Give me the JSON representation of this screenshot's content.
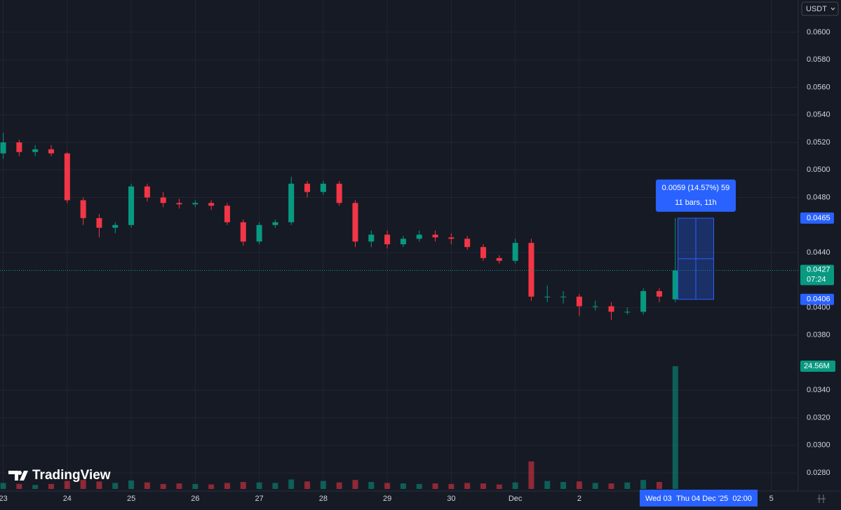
{
  "chart_data": {
    "type": "candlestick",
    "currency": "USDT",
    "x": [
      0,
      0.25,
      0.5,
      0.75,
      1,
      1.25,
      1.5,
      1.75,
      2,
      2.25,
      2.5,
      2.75,
      3,
      3.25,
      3.5,
      3.75,
      4,
      4.25,
      4.5,
      4.75,
      5,
      5.25,
      5.5,
      5.75,
      6,
      6.25,
      6.5,
      6.75,
      7,
      7.25,
      7.5,
      7.75,
      8,
      8.25,
      8.5,
      8.75,
      9,
      9.25,
      9.5,
      9.75,
      10,
      10.25,
      10.5
    ],
    "open": [
      0.0512,
      0.052,
      0.0513,
      0.0515,
      0.0512,
      0.0478,
      0.0465,
      0.0458,
      0.046,
      0.0488,
      0.048,
      0.0476,
      0.0475,
      0.0476,
      0.0474,
      0.0462,
      0.0448,
      0.046,
      0.0462,
      0.049,
      0.0484,
      0.049,
      0.0476,
      0.0448,
      0.0453,
      0.0446,
      0.045,
      0.0453,
      0.0451,
      0.045,
      0.0444,
      0.0436,
      0.0434,
      0.0447,
      0.0408,
      0.0408,
      0.0408,
      0.0401,
      0.0401,
      0.0397,
      0.0397,
      0.0412,
      0.0406
    ],
    "high": [
      0.0527,
      0.0522,
      0.0518,
      0.0518,
      0.0513,
      0.048,
      0.0468,
      0.0462,
      0.049,
      0.049,
      0.0484,
      0.0479,
      0.0478,
      0.0478,
      0.0476,
      0.0464,
      0.0462,
      0.0464,
      0.0495,
      0.0492,
      0.0492,
      0.0492,
      0.0478,
      0.0456,
      0.0456,
      0.0452,
      0.0456,
      0.0456,
      0.0454,
      0.0452,
      0.0446,
      0.0438,
      0.045,
      0.045,
      0.0416,
      0.0412,
      0.041,
      0.0405,
      0.0404,
      0.04,
      0.0414,
      0.0414,
      0.0465
    ],
    "low": [
      0.0508,
      0.051,
      0.051,
      0.051,
      0.0476,
      0.046,
      0.0451,
      0.0454,
      0.0458,
      0.0477,
      0.0473,
      0.0472,
      0.0473,
      0.0471,
      0.046,
      0.0445,
      0.0446,
      0.0458,
      0.046,
      0.048,
      0.0482,
      0.0474,
      0.0444,
      0.0444,
      0.0443,
      0.0444,
      0.0448,
      0.0448,
      0.0446,
      0.0442,
      0.0434,
      0.0432,
      0.0432,
      0.0405,
      0.0404,
      0.0403,
      0.0394,
      0.0398,
      0.0391,
      0.0395,
      0.0395,
      0.0404,
      0.0404
    ],
    "close": [
      0.052,
      0.0513,
      0.0515,
      0.0512,
      0.0478,
      0.0465,
      0.0458,
      0.046,
      0.0488,
      0.048,
      0.0476,
      0.0475,
      0.0476,
      0.0474,
      0.0462,
      0.0448,
      0.046,
      0.0462,
      0.049,
      0.0484,
      0.049,
      0.0476,
      0.0448,
      0.0453,
      0.0446,
      0.045,
      0.0453,
      0.0451,
      0.045,
      0.0444,
      0.0436,
      0.0434,
      0.0447,
      0.0408,
      0.0408,
      0.0408,
      0.0401,
      0.0401,
      0.0397,
      0.0397,
      0.0412,
      0.0408,
      0.0427
    ],
    "volume": [
      1.2,
      1.0,
      0.8,
      1.0,
      1.6,
      1.8,
      1.5,
      1.2,
      1.7,
      1.3,
      1.0,
      1.1,
      1.0,
      0.9,
      1.2,
      1.4,
      1.3,
      1.2,
      1.9,
      1.5,
      1.6,
      1.3,
      1.8,
      1.4,
      1.2,
      1.1,
      1.0,
      1.1,
      1.0,
      1.2,
      1.1,
      0.9,
      1.3,
      5.5,
      1.6,
      1.4,
      1.5,
      1.2,
      1.1,
      1.3,
      1.8,
      1.4,
      24.56
    ],
    "volume_last_label": "24.56M",
    "up_color": "#089981",
    "down_color": "#f23645",
    "xlim": [
      -0.05,
      12.42
    ],
    "xticks": [
      {
        "value": 0,
        "label": "23"
      },
      {
        "value": 1,
        "label": "24"
      },
      {
        "value": 2,
        "label": "25"
      },
      {
        "value": 3,
        "label": "26"
      },
      {
        "value": 4,
        "label": "27"
      },
      {
        "value": 5,
        "label": "28"
      },
      {
        "value": 6,
        "label": "29"
      },
      {
        "value": 7,
        "label": "30"
      },
      {
        "value": 8,
        "label": "Dec"
      },
      {
        "value": 9,
        "label": "2"
      },
      {
        "value": 12,
        "label": "5"
      }
    ],
    "ylim": [
      0.02668,
      0.06234
    ],
    "yticks": [
      {
        "value": 0.028,
        "label": "0.0280"
      },
      {
        "value": 0.03,
        "label": "0.0300"
      },
      {
        "value": 0.032,
        "label": "0.0320"
      },
      {
        "value": 0.034,
        "label": "0.0340"
      },
      {
        "value": 0.038,
        "label": "0.0380"
      },
      {
        "value": 0.04,
        "label": "0.0400"
      },
      {
        "value": 0.044,
        "label": "0.0440"
      },
      {
        "value": 0.048,
        "label": "0.0480"
      },
      {
        "value": 0.05,
        "label": "0.0500"
      },
      {
        "value": 0.052,
        "label": "0.0520"
      },
      {
        "value": 0.054,
        "label": "0.0540"
      },
      {
        "value": 0.056,
        "label": "0.0560"
      },
      {
        "value": 0.058,
        "label": "0.0580"
      },
      {
        "value": 0.06,
        "label": "0.0600"
      }
    ],
    "grid": true,
    "current_price": {
      "value": 0.0427,
      "label": "0.0427",
      "countdown": "07:24"
    },
    "measure": {
      "x_start": 10.54,
      "x_end": 11.1,
      "top": {
        "value": 0.0465,
        "label": "0.0465"
      },
      "bottom": {
        "value": 0.0406,
        "label": "0.0406"
      },
      "text": "0.0059 (14.57%) 59",
      "subtext": "11 bars, 11h"
    },
    "hover_date": "Wed 03",
    "crosshair_time": "Thu 04 Dec '25  02:00",
    "brand": "TradingView"
  }
}
